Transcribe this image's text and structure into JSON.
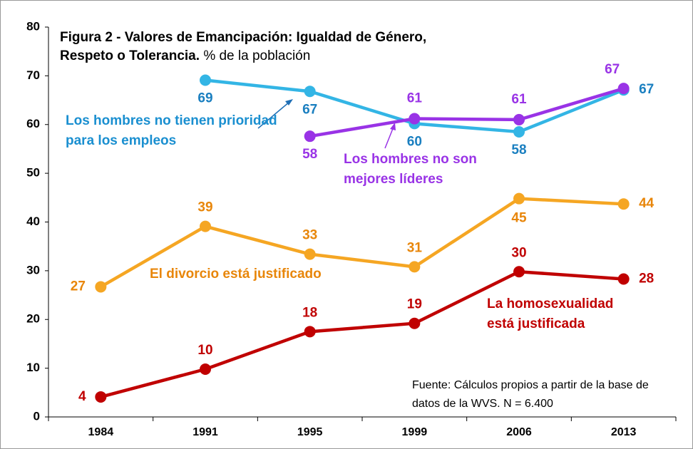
{
  "chart_data": {
    "type": "line",
    "title": "Figura 2 - Valores de Emancipación: Igualdad de Género, Respeto o Tolerancia.",
    "subtitle": "% de la población",
    "annotation": "Fuente: Cálculos propios a partir de la base de datos de la WVS. N = 6.400",
    "categories": [
      "1984",
      "1991",
      "1995",
      "1999",
      "2006",
      "2013"
    ],
    "ylim": [
      0,
      80
    ],
    "yticks": [
      0,
      10,
      20,
      30,
      40,
      50,
      60,
      70,
      80
    ],
    "series": [
      {
        "name": "Los hombres no tienen prioridad para los empleos",
        "color": "#33b5e5",
        "values": [
          null,
          69.1,
          66.8,
          60.2,
          58.5,
          67.1
        ],
        "value_labels": [
          null,
          "69",
          "67",
          "60",
          "58",
          "67"
        ]
      },
      {
        "name": "Los hombres no son mejores líderes",
        "color": "#9933e6",
        "values": [
          null,
          null,
          57.6,
          61.2,
          61.0,
          67.4
        ],
        "value_labels": [
          null,
          null,
          "58",
          "61",
          "61",
          "67"
        ]
      },
      {
        "name": "El divorcio está justificado",
        "color": "#f5a623",
        "values": [
          26.7,
          39.1,
          33.4,
          30.8,
          44.8,
          43.7
        ],
        "value_labels": [
          "27",
          "39",
          "33",
          "31",
          "45",
          "44"
        ]
      },
      {
        "name": "La homosexualidad está justificada",
        "color": "#c00000",
        "values": [
          4.1,
          9.8,
          17.5,
          19.2,
          29.8,
          28.3
        ],
        "value_labels": [
          "4",
          "10",
          "18",
          "19",
          "30",
          "28"
        ]
      }
    ]
  }
}
